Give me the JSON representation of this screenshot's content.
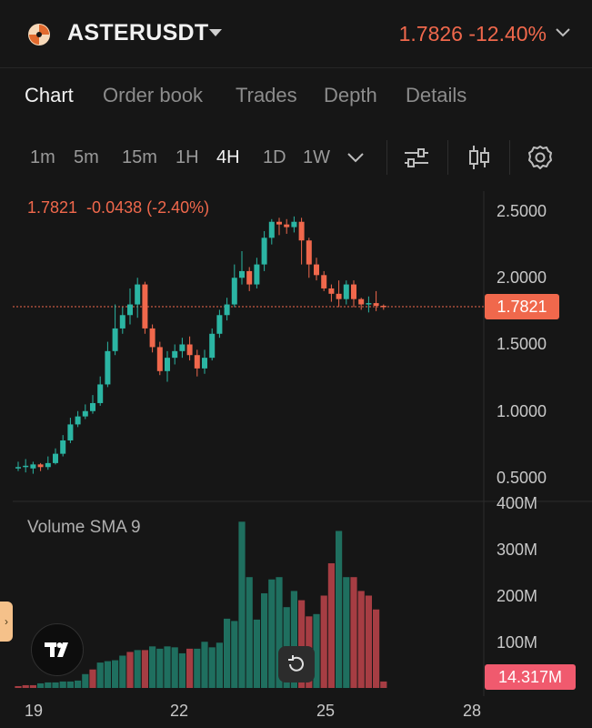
{
  "header": {
    "pair": "ASTERUSDT",
    "price_change": "1.7826 -12.40%",
    "colors": {
      "down": "#f0684c",
      "up": "#2bb5a3"
    }
  },
  "tabs": [
    {
      "label": "Chart",
      "active": true
    },
    {
      "label": "Order book",
      "active": false
    },
    {
      "label": "Trades",
      "active": false
    },
    {
      "label": "Depth",
      "active": false
    },
    {
      "label": "Details",
      "active": false
    }
  ],
  "timeframes": [
    {
      "label": "1m"
    },
    {
      "label": "5m"
    },
    {
      "label": "15m"
    },
    {
      "label": "1H"
    },
    {
      "label": "4H",
      "active": true
    },
    {
      "label": "1D"
    },
    {
      "label": "1W"
    }
  ],
  "icons": [
    "chevron-down-icon",
    "indicators-icon",
    "candle-type-icon",
    "settings-icon"
  ],
  "ohlc_line": "1.7821  -0.0438 (-2.40%)",
  "price_axis": [
    "2.5000",
    "2.0000",
    "1.5000",
    "1.0000",
    "0.5000"
  ],
  "current_price_tag": "1.7821",
  "volume": {
    "title": "Volume SMA 9",
    "axis": [
      "400M",
      "300M",
      "200M",
      "100M"
    ],
    "current_tag": "14.317M"
  },
  "date_axis": [
    "19",
    "22",
    "25",
    "28"
  ],
  "chart_data": {
    "type": "candlestick",
    "title": "",
    "y_range": [
      0.35,
      2.65
    ],
    "x_ticks": [
      "19",
      "22",
      "25",
      "28"
    ],
    "candles": [
      [
        0.58,
        0.58,
        0.62,
        0.55
      ],
      [
        0.58,
        0.59,
        0.64,
        0.54
      ],
      [
        0.57,
        0.6,
        0.62,
        0.53
      ],
      [
        0.6,
        0.58,
        0.61,
        0.55
      ],
      [
        0.58,
        0.61,
        0.66,
        0.56
      ],
      [
        0.61,
        0.68,
        0.72,
        0.6
      ],
      [
        0.68,
        0.78,
        0.82,
        0.66
      ],
      [
        0.78,
        0.9,
        0.95,
        0.76
      ],
      [
        0.9,
        0.96,
        1.0,
        0.88
      ],
      [
        0.96,
        1.0,
        1.05,
        0.94
      ],
      [
        1.0,
        1.06,
        1.12,
        0.98
      ],
      [
        1.06,
        1.2,
        1.26,
        1.04
      ],
      [
        1.2,
        1.45,
        1.52,
        1.18
      ],
      [
        1.45,
        1.62,
        1.8,
        1.42
      ],
      [
        1.62,
        1.72,
        1.78,
        1.58
      ],
      [
        1.72,
        1.8,
        1.92,
        1.65
      ],
      [
        1.8,
        1.95,
        2.0,
        1.7
      ],
      [
        1.95,
        1.62,
        1.97,
        1.58
      ],
      [
        1.62,
        1.48,
        1.65,
        1.44
      ],
      [
        1.48,
        1.3,
        1.52,
        1.27
      ],
      [
        1.3,
        1.4,
        1.45,
        1.22
      ],
      [
        1.4,
        1.45,
        1.5,
        1.35
      ],
      [
        1.45,
        1.5,
        1.55,
        1.4
      ],
      [
        1.5,
        1.42,
        1.56,
        1.38
      ],
      [
        1.42,
        1.32,
        1.46,
        1.26
      ],
      [
        1.32,
        1.4,
        1.46,
        1.28
      ],
      [
        1.4,
        1.58,
        1.62,
        1.38
      ],
      [
        1.58,
        1.72,
        1.76,
        1.55
      ],
      [
        1.72,
        1.8,
        1.85,
        1.68
      ],
      [
        1.8,
        2.0,
        2.1,
        1.78
      ],
      [
        2.0,
        2.05,
        2.2,
        1.95
      ],
      [
        2.05,
        1.95,
        2.08,
        1.9
      ],
      [
        1.95,
        2.1,
        2.15,
        1.92
      ],
      [
        2.1,
        2.3,
        2.35,
        2.05
      ],
      [
        2.3,
        2.42,
        2.44,
        2.25
      ],
      [
        2.42,
        2.4,
        2.45,
        2.32
      ],
      [
        2.4,
        2.38,
        2.44,
        2.33
      ],
      [
        2.38,
        2.42,
        2.46,
        2.34
      ],
      [
        2.42,
        2.28,
        2.45,
        2.1
      ],
      [
        2.28,
        2.1,
        2.3,
        2.0
      ],
      [
        2.1,
        2.02,
        2.15,
        1.98
      ],
      [
        2.02,
        1.92,
        2.05,
        1.9
      ],
      [
        1.92,
        1.88,
        1.95,
        1.82
      ],
      [
        1.88,
        1.84,
        1.98,
        1.78
      ],
      [
        1.84,
        1.95,
        1.98,
        1.8
      ],
      [
        1.95,
        1.84,
        1.98,
        1.78
      ],
      [
        1.84,
        1.8,
        1.85,
        1.76
      ],
      [
        1.8,
        1.81,
        1.86,
        1.74
      ],
      [
        1.81,
        1.79,
        1.9,
        1.75
      ],
      [
        1.79,
        1.78,
        1.8,
        1.76
      ]
    ],
    "volume_range": [
      0,
      400
    ],
    "volumes": [
      [
        4,
        "down"
      ],
      [
        6,
        "down"
      ],
      [
        6,
        "down"
      ],
      [
        10,
        "up"
      ],
      [
        12,
        "up"
      ],
      [
        12,
        "up"
      ],
      [
        14,
        "up"
      ],
      [
        14,
        "up"
      ],
      [
        16,
        "up"
      ],
      [
        30,
        "up"
      ],
      [
        40,
        "down"
      ],
      [
        55,
        "up"
      ],
      [
        58,
        "up"
      ],
      [
        60,
        "up"
      ],
      [
        70,
        "up"
      ],
      [
        78,
        "down"
      ],
      [
        82,
        "up"
      ],
      [
        82,
        "down"
      ],
      [
        90,
        "up"
      ],
      [
        85,
        "up"
      ],
      [
        90,
        "up"
      ],
      [
        88,
        "up"
      ],
      [
        75,
        "up"
      ],
      [
        85,
        "down"
      ],
      [
        85,
        "up"
      ],
      [
        100,
        "up"
      ],
      [
        88,
        "up"
      ],
      [
        98,
        "up"
      ],
      [
        150,
        "up"
      ],
      [
        145,
        "up"
      ],
      [
        360,
        "up"
      ],
      [
        240,
        "up"
      ],
      [
        148,
        "up"
      ],
      [
        205,
        "up"
      ],
      [
        235,
        "up"
      ],
      [
        240,
        "up"
      ],
      [
        175,
        "up"
      ],
      [
        210,
        "up"
      ],
      [
        190,
        "down"
      ],
      [
        155,
        "down"
      ],
      [
        160,
        "up"
      ],
      [
        200,
        "down"
      ],
      [
        270,
        "down"
      ],
      [
        340,
        "up"
      ],
      [
        240,
        "up"
      ],
      [
        240,
        "down"
      ],
      [
        210,
        "down"
      ],
      [
        200,
        "down"
      ],
      [
        170,
        "down"
      ],
      [
        14,
        "down"
      ]
    ]
  }
}
